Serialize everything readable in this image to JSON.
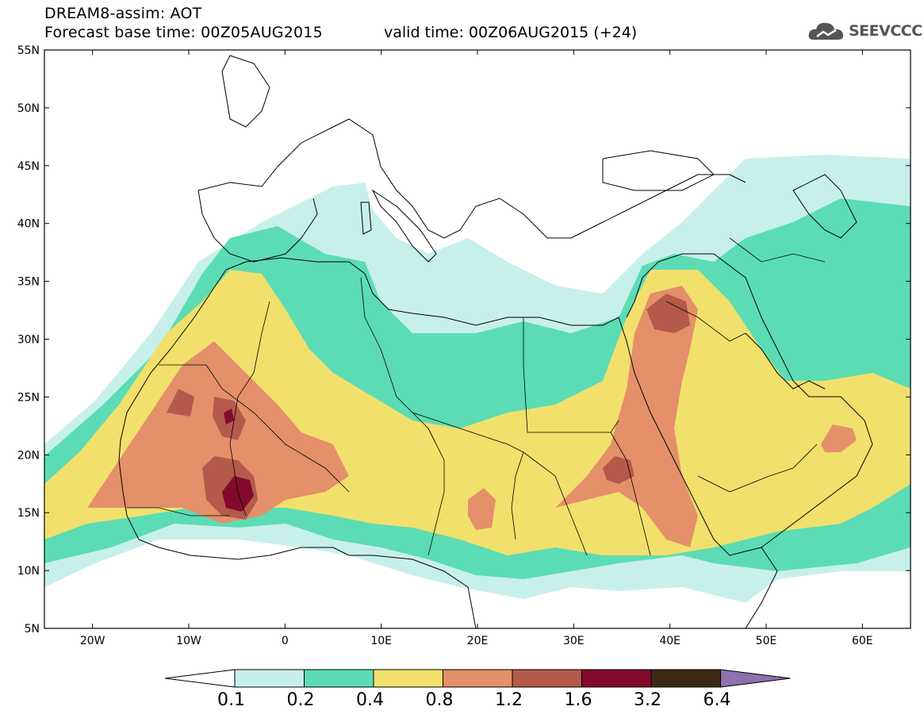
{
  "header": {
    "title_line1": "DREAM8-assim: AOT",
    "title_line2": "Forecast base time: 00Z05AUG2015",
    "valid_time": "valid time: 00Z06AUG2015 (+24)",
    "logo_text": "SEEVCCC"
  },
  "map": {
    "lat_labels": [
      "55N",
      "50N",
      "45N",
      "40N",
      "35N",
      "30N",
      "25N",
      "20N",
      "15N",
      "10N",
      "5N"
    ],
    "lon_labels": [
      "20W",
      "10W",
      "0",
      "10E",
      "20E",
      "30E",
      "40E",
      "50E",
      "60E"
    ],
    "colors": {
      "c1": "#c8f0ea",
      "c2": "#5cdcb4",
      "c3": "#f2e06c",
      "c4": "#e4906a",
      "c5": "#b45a4a",
      "c6": "#820a2c",
      "c7": "#3c2814",
      "c8": "#9070b0"
    }
  },
  "colorbar": {
    "labels": [
      "0.1",
      "0.2",
      "0.4",
      "0.8",
      "1.2",
      "1.6",
      "3.2",
      "6.4"
    ],
    "colors": [
      "#c8f0ea",
      "#5cdcb4",
      "#f2e06c",
      "#e4906a",
      "#b45a4a",
      "#820a2c",
      "#3c2814"
    ],
    "upper_extend_color": "#9070b0"
  }
}
